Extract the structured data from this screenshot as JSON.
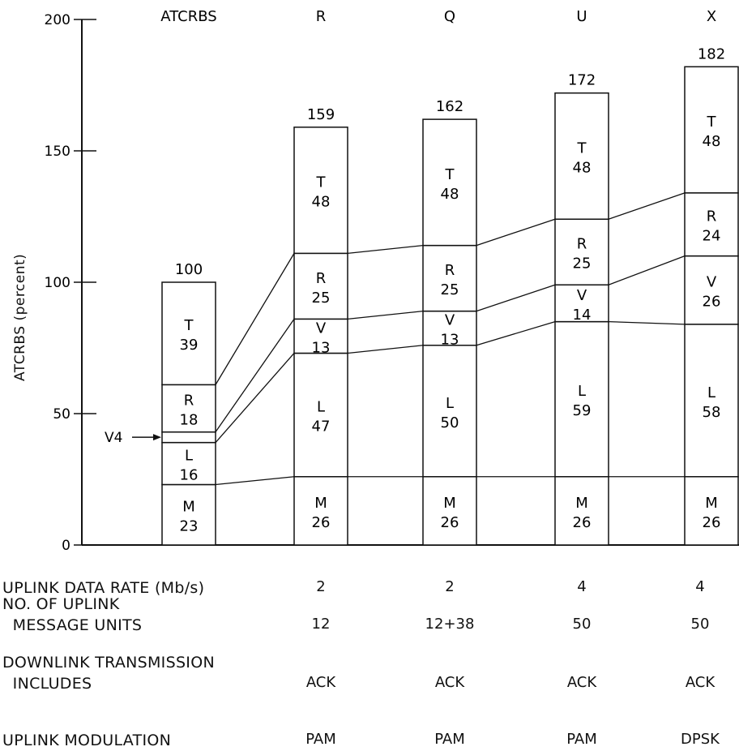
{
  "chart_data": {
    "type": "stacked bar",
    "ylabel": "ATCRBS (percent)",
    "ylim": [
      0,
      200
    ],
    "yticks": [
      0,
      50,
      100,
      150,
      200
    ],
    "yticklabels": [
      "0",
      "50",
      "100",
      "150",
      "200"
    ],
    "categories": [
      "ATCRBS",
      "R",
      "Q",
      "U",
      "X"
    ],
    "totals": [
      "100",
      "159",
      "162",
      "172",
      "182"
    ],
    "stacks": [
      [
        {
          "label": "M",
          "value": 23
        },
        {
          "label": "L",
          "value": 16
        },
        {
          "label": "V",
          "value": 4
        },
        {
          "label": "R",
          "value": 18
        },
        {
          "label": "T",
          "value": 39
        }
      ],
      [
        {
          "label": "M",
          "value": 26
        },
        {
          "label": "L",
          "value": 47
        },
        {
          "label": "V",
          "value": 13
        },
        {
          "label": "R",
          "value": 25
        },
        {
          "label": "T",
          "value": 48
        }
      ],
      [
        {
          "label": "M",
          "value": 26
        },
        {
          "label": "L",
          "value": 50
        },
        {
          "label": "V",
          "value": 13
        },
        {
          "label": "R",
          "value": 25
        },
        {
          "label": "T",
          "value": 48
        }
      ],
      [
        {
          "label": "M",
          "value": 26
        },
        {
          "label": "L",
          "value": 59
        },
        {
          "label": "V",
          "value": 14
        },
        {
          "label": "R",
          "value": 25
        },
        {
          "label": "T",
          "value": 48
        }
      ],
      [
        {
          "label": "M",
          "value": 26
        },
        {
          "label": "L",
          "value": 58
        },
        {
          "label": "V",
          "value": 26
        },
        {
          "label": "R",
          "value": 24
        },
        {
          "label": "T",
          "value": 48
        }
      ]
    ],
    "annotation": "V4"
  },
  "table": {
    "rows": [
      {
        "label": "UPLINK DATA RATE (Mb/s)",
        "values": [
          "2",
          "2",
          "4",
          "4"
        ]
      },
      {
        "label": "NO. OF UPLINK\n  MESSAGE UNITS",
        "values": [
          "12",
          "12+38",
          "50",
          "50"
        ]
      },
      {
        "label": "DOWNLINK TRANSMISSION\n  INCLUDES",
        "values": [
          "ACK",
          "ACK",
          "ACK",
          "ACK"
        ]
      },
      {
        "label": "UPLINK MODULATION",
        "values": [
          "PAM",
          "PAM",
          "PAM",
          "DPSK"
        ]
      }
    ]
  }
}
